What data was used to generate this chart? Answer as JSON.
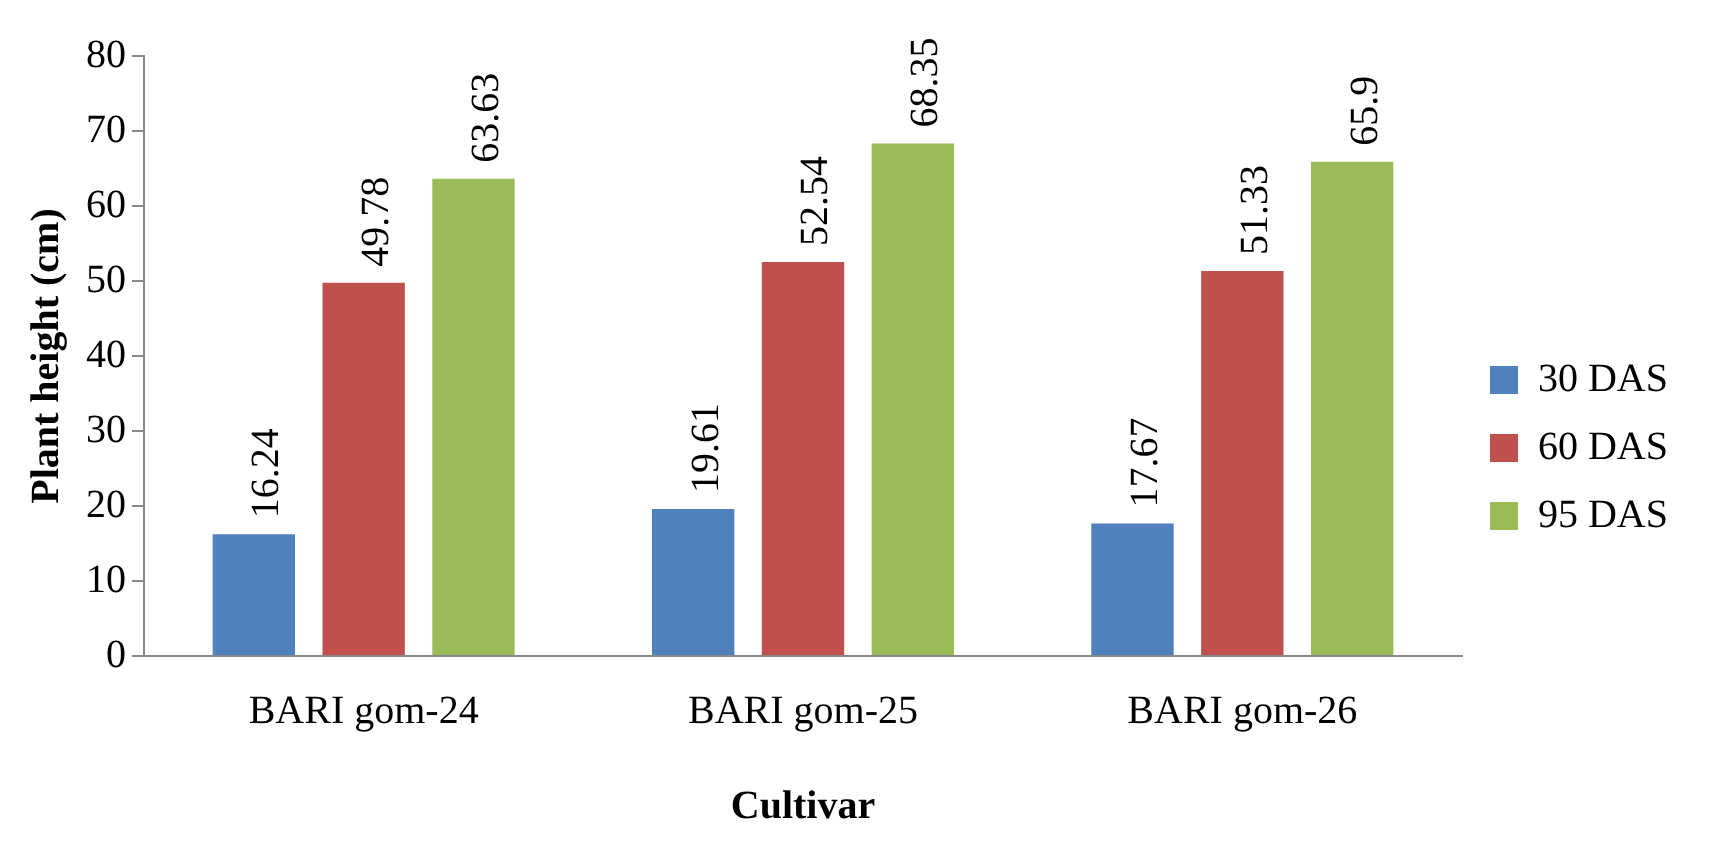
{
  "chart_data": {
    "type": "bar",
    "xlabel": "Cultivar",
    "ylabel": "Plant height (cm)",
    "categories": [
      "BARI gom-24",
      "BARI gom-25",
      "BARI gom-26"
    ],
    "series": [
      {
        "name": "30 DAS",
        "color": "#4f81bd",
        "values": [
          16.24,
          19.61,
          17.67
        ]
      },
      {
        "name": "60 DAS",
        "color": "#c0504d",
        "values": [
          49.78,
          52.54,
          51.33
        ]
      },
      {
        "name": "95 DAS",
        "color": "#9bbb59",
        "values": [
          63.63,
          68.35,
          65.9
        ]
      }
    ],
    "ylim": [
      0,
      80
    ],
    "yticks": [
      0,
      10,
      20,
      30,
      40,
      50,
      60,
      70,
      80
    ],
    "grid": false,
    "legend": "right",
    "data_labels": true
  }
}
